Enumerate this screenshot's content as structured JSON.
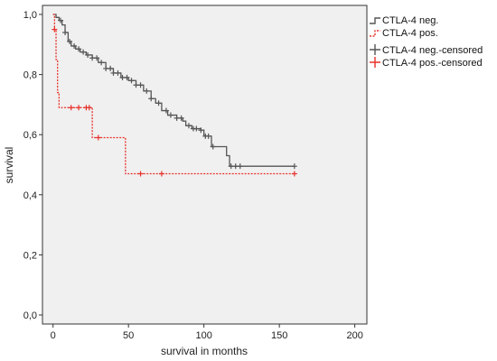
{
  "chart_data": {
    "type": "line",
    "xlabel": "survival in months",
    "ylabel": "survival",
    "xlim": [
      -7,
      208
    ],
    "ylim": [
      -0.03,
      1.03
    ],
    "x_ticks": [
      0,
      50,
      100,
      150,
      200
    ],
    "x_tick_labels": [
      "0",
      "50",
      "100",
      "150",
      "200"
    ],
    "y_ticks": [
      0,
      0.2,
      0.4,
      0.6,
      0.8,
      1.0
    ],
    "y_tick_labels": [
      "0,0",
      "0,2",
      "0,4",
      "0,6",
      "0,8",
      "1,0"
    ],
    "grid": false,
    "legend_position": "right",
    "legend": [
      "CTLA-4 neg.",
      "CTLA-4 pos.",
      "CTLA-4 neg.-censored",
      "CTLA-4 pos.-censored"
    ],
    "series": [
      {
        "name": "CTLA-4 neg.",
        "color": "#555555",
        "style": "solid",
        "steps": [
          [
            0,
            1.0
          ],
          [
            2,
            0.99
          ],
          [
            4,
            0.98
          ],
          [
            6,
            0.965
          ],
          [
            8,
            0.94
          ],
          [
            10,
            0.91
          ],
          [
            12,
            0.895
          ],
          [
            15,
            0.885
          ],
          [
            18,
            0.875
          ],
          [
            22,
            0.865
          ],
          [
            26,
            0.855
          ],
          [
            30,
            0.84
          ],
          [
            35,
            0.82
          ],
          [
            40,
            0.805
          ],
          [
            45,
            0.79
          ],
          [
            50,
            0.78
          ],
          [
            55,
            0.765
          ],
          [
            60,
            0.745
          ],
          [
            65,
            0.72
          ],
          [
            68,
            0.705
          ],
          [
            72,
            0.68
          ],
          [
            76,
            0.665
          ],
          [
            82,
            0.655
          ],
          [
            86,
            0.645
          ],
          [
            88,
            0.63
          ],
          [
            92,
            0.62
          ],
          [
            98,
            0.615
          ],
          [
            100,
            0.595
          ],
          [
            105,
            0.56
          ],
          [
            115,
            0.53
          ],
          [
            117,
            0.495
          ],
          [
            160,
            0.495
          ]
        ],
        "censored": [
          5,
          8,
          11,
          14,
          17,
          20,
          23,
          26,
          29,
          32,
          35,
          38,
          40,
          43,
          46,
          49,
          52,
          55,
          58,
          62,
          65,
          70,
          75,
          78,
          82,
          85,
          90,
          93,
          95,
          98,
          101,
          103,
          106,
          118,
          121,
          124,
          160
        ]
      },
      {
        "name": "CTLA-4 pos.",
        "color": "#e8312b",
        "style": "dotted",
        "steps": [
          [
            0,
            1.0
          ],
          [
            1,
            0.95
          ],
          [
            2,
            0.85
          ],
          [
            3,
            0.74
          ],
          [
            4,
            0.69
          ],
          [
            25,
            0.69
          ],
          [
            26,
            0.59
          ],
          [
            47,
            0.59
          ],
          [
            48,
            0.47
          ],
          [
            160,
            0.47
          ]
        ],
        "censored": [
          1,
          12,
          17,
          22,
          24,
          30,
          58,
          72,
          160
        ]
      }
    ]
  }
}
